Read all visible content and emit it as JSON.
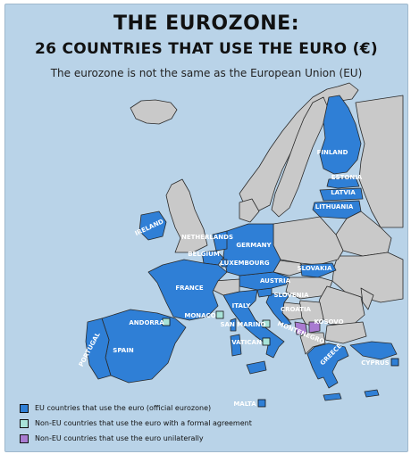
{
  "title_line1": "THE EUROZONE:",
  "title_line2": "26 COUNTRIES THAT USE THE EURO (€)",
  "subtitle": "The eurozone is not the same as the European Union (EU)",
  "colors": {
    "sea": "#b9d3e8",
    "eu_euro": "#2f7fd6",
    "non_eu_agreement": "#a8e3d8",
    "non_eu_unilateral": "#a97bd1",
    "other_land": "#c9c9c9"
  },
  "labels": {
    "finland": "FINLAND",
    "estonia": "ESTONIA",
    "latvia": "LATVIA",
    "lithuania": "LITHUANIA",
    "ireland": "IRELAND",
    "netherlands": "NETHERLANDS",
    "belgium": "BELGIUM",
    "luxembourg": "LUXEMBOURG",
    "germany": "GERMANY",
    "france": "FRANCE",
    "austria": "AUSTRIA",
    "slovakia": "SLOVAKIA",
    "slovenia": "SLOVENIA",
    "croatia": "CROATIA",
    "italy": "ITALY",
    "andorra": "ANDORRA",
    "monaco": "MONACO",
    "san_marino": "SAN MARINO",
    "vatican": "VATICAN",
    "montenegro": "MONTENEGRO",
    "kosovo": "KOSOVO",
    "portugal": "PORTUGAL",
    "spain": "SPAIN",
    "greece": "GREECE",
    "cyprus": "CYPRUS",
    "malta": "MALTA"
  },
  "legend": [
    {
      "text": "EU countries that use the euro (official eurozone)",
      "color": "#2f7fd6"
    },
    {
      "text": "Non-EU countries that use the euro with a formal agreement",
      "color": "#a8e3d8"
    },
    {
      "text": "Non-EU countries that use the euro unilaterally",
      "color": "#a97bd1"
    }
  ]
}
